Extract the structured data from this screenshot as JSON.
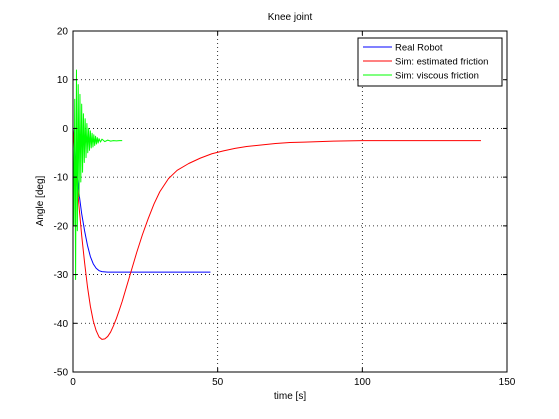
{
  "chart_data": {
    "type": "line",
    "title": "Knee joint",
    "xlabel": "time [s]",
    "ylabel": "Angle [deg]",
    "xlim": [
      0,
      150
    ],
    "ylim": [
      -50,
      20
    ],
    "xticks": [
      0,
      50,
      100,
      150
    ],
    "yticks": [
      -50,
      -40,
      -30,
      -20,
      -10,
      0,
      10,
      20
    ],
    "grid": true,
    "legend_position": "top-right",
    "series": [
      {
        "name": "Real Robot",
        "color": "#0000ff",
        "x": [
          0,
          0.5,
          1,
          1.5,
          2,
          3,
          4,
          5,
          6,
          7,
          8,
          9,
          10,
          12,
          15,
          20,
          25,
          30,
          35,
          40,
          47.5
        ],
        "y": [
          0,
          -3,
          -7,
          -10,
          -13,
          -17.5,
          -21,
          -24,
          -26.3,
          -27.8,
          -28.7,
          -29.2,
          -29.4,
          -29.5,
          -29.5,
          -29.5,
          -29.5,
          -29.5,
          -29.5,
          -29.5,
          -29.5
        ]
      },
      {
        "name": "Sim: estimated friction",
        "color": "#ff0000",
        "x": [
          0,
          1,
          2,
          3,
          4,
          5,
          6,
          7,
          8,
          9,
          10,
          11,
          12,
          13,
          14,
          15,
          16,
          17,
          18,
          20,
          22,
          24,
          26,
          28,
          30,
          33,
          36,
          40,
          44,
          48,
          52,
          56,
          60,
          65,
          70,
          75,
          80,
          85,
          90,
          95,
          100,
          110,
          120,
          130,
          141
        ],
        "y": [
          0,
          -8,
          -15.5,
          -22,
          -27.5,
          -32.5,
          -36.5,
          -39.5,
          -41.5,
          -42.8,
          -43.3,
          -43.2,
          -42.7,
          -41.8,
          -40.5,
          -39,
          -37.3,
          -35.5,
          -33.5,
          -29.5,
          -25.5,
          -21.8,
          -18.5,
          -15.5,
          -13,
          -10.3,
          -8.6,
          -7.2,
          -6.1,
          -5.2,
          -4.6,
          -4.1,
          -3.7,
          -3.4,
          -3.1,
          -2.9,
          -2.8,
          -2.7,
          -2.6,
          -2.55,
          -2.5,
          -2.5,
          -2.5,
          -2.5,
          -2.5
        ]
      },
      {
        "name": "Sim: viscous friction",
        "color": "#00ff00",
        "x": [
          0,
          0.3,
          0.6,
          0.9,
          1.2,
          1.5,
          1.8,
          2.1,
          2.4,
          2.7,
          3.0,
          3.3,
          3.6,
          3.9,
          4.2,
          4.5,
          4.8,
          5.1,
          5.4,
          5.7,
          6.0,
          6.3,
          6.6,
          6.9,
          7.2,
          7.5,
          7.8,
          8.1,
          8.4,
          8.7,
          9.0,
          9.5,
          10,
          11,
          12,
          13,
          14,
          15,
          16,
          17
        ],
        "y": [
          0,
          -20,
          6,
          -31,
          12,
          -21,
          9,
          -14,
          7,
          -11,
          5,
          -9,
          3,
          -7,
          2,
          -6,
          1,
          -5,
          0,
          -4.5,
          -0.5,
          -4,
          -1,
          -3.8,
          -1.3,
          -3.5,
          -1.6,
          -3.2,
          -1.9,
          -3.0,
          -2.1,
          -2.8,
          -2.2,
          -2.7,
          -2.4,
          -2.6,
          -2.5,
          -2.55,
          -2.5,
          -2.5
        ]
      }
    ]
  }
}
